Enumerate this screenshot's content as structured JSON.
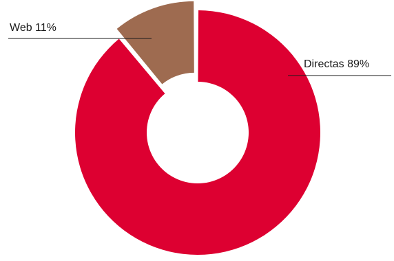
{
  "chart_data": {
    "type": "pie",
    "variant": "donut",
    "title": "",
    "series": [
      {
        "values": [
          89,
          11
        ],
        "categories": [
          "Directas",
          "Web"
        ]
      }
    ],
    "slices": [
      {
        "category": "Directas",
        "value": 89,
        "label": "Directas 89%",
        "color": "#dd0031"
      },
      {
        "category": "Web",
        "value": 11,
        "label": "Web 11%",
        "color": "#9e6b50",
        "exploded": true
      }
    ],
    "legend": "none",
    "grid": false
  }
}
